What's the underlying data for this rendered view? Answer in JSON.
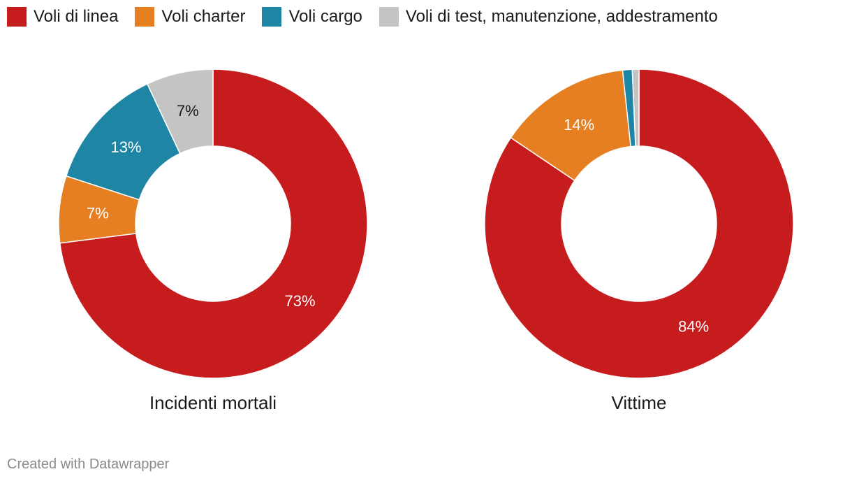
{
  "legend": [
    {
      "label": "Voli di linea",
      "color": "#c71c1e"
    },
    {
      "label": "Voli charter",
      "color": "#e67e22"
    },
    {
      "label": "Voli cargo",
      "color": "#1f85a5"
    },
    {
      "label": "Voli di test, manutenzione, addestramento",
      "color": "#c4c4c4"
    }
  ],
  "chart_data": [
    {
      "type": "pie",
      "title": "Incidenti mortali",
      "categories": [
        "Voli di linea",
        "Voli charter",
        "Voli cargo",
        "Voli di test, manutenzione, addestramento"
      ],
      "values": [
        73,
        7,
        13,
        7
      ],
      "labels": [
        "73%",
        "7%",
        "13%",
        "7%"
      ],
      "colors": [
        "#c71c1e",
        "#e67e22",
        "#1f85a5",
        "#c4c4c4"
      ],
      "label_colors": [
        "#ffffff",
        "#ffffff",
        "#ffffff",
        "#1a1a1a"
      ]
    },
    {
      "type": "pie",
      "title": "Vittime",
      "categories": [
        "Voli di linea",
        "Voli charter",
        "Voli cargo",
        "Voli di test, manutenzione, addestramento"
      ],
      "values": [
        84.4,
        13.9,
        1.0,
        0.7
      ],
      "labels": [
        "84%",
        "14%",
        "",
        ""
      ],
      "colors": [
        "#c71c1e",
        "#e67e22",
        "#1f85a5",
        "#c4c4c4"
      ],
      "label_colors": [
        "#ffffff",
        "#ffffff",
        "#ffffff",
        "#1a1a1a"
      ]
    }
  ],
  "footer": "Created with Datawrapper"
}
